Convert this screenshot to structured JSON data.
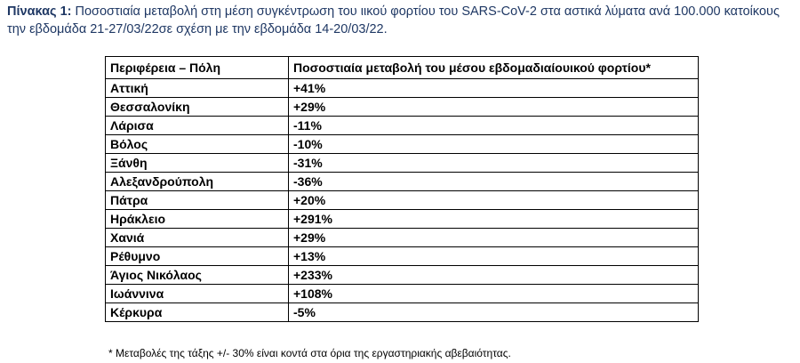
{
  "caption": {
    "label": "Πίνακας 1:",
    "text": " Ποσοστιαία μεταβολή στη μέση συγκέντρωση του ιικού φορτίου του SARS-CoV-2 στα αστικά λύματα ανά 100.000 κατοίκους την εβδομάδα 21-27/03/22σε σχέση με την εβδομάδα 14-20/03/22."
  },
  "table": {
    "headers": [
      "Περιφέρεια – Πόλη",
      "Ποσοστιαία μεταβολή του μέσου εβδομαδιαίουικού φορτίου*"
    ],
    "rows": [
      {
        "city": "Αττική",
        "change": "+41%"
      },
      {
        "city": "Θεσσαλονίκη",
        "change": "+29%"
      },
      {
        "city": "Λάρισα",
        "change": "-11%"
      },
      {
        "city": "Βόλος",
        "change": "-10%"
      },
      {
        "city": "Ξάνθη",
        "change": "-31%"
      },
      {
        "city": "Αλεξανδρούπολη",
        "change": "-36%"
      },
      {
        "city": "Πάτρα",
        "change": "+20%"
      },
      {
        "city": "Ηράκλειο",
        "change": "+291%"
      },
      {
        "city": "Χανιά",
        "change": "+29%"
      },
      {
        "city": "Ρέθυμνο",
        "change": "+13%"
      },
      {
        "city": "Άγιος Νικόλαος",
        "change": "+233%"
      },
      {
        "city": "Ιωάννινα",
        "change": "+108%"
      },
      {
        "city": "Κέρκυρα",
        "change": "-5%"
      }
    ]
  },
  "footnote": "* Μεταβολές της τάξης +/- 30% είναι κοντά στα όρια της εργαστηριακής αβεβαιότητας.",
  "colors": {
    "caption": "#1f3864",
    "border": "#000000"
  }
}
